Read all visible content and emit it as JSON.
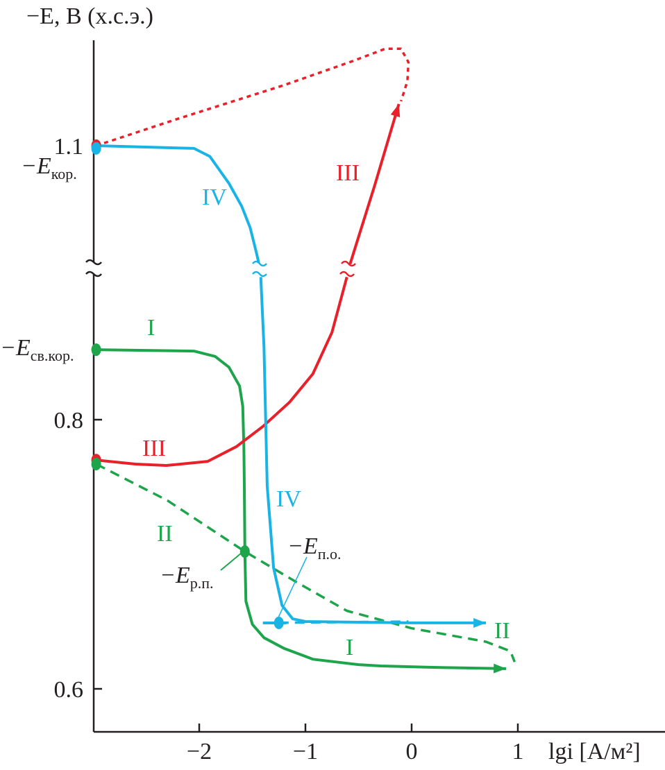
{
  "chart_data": {
    "type": "line",
    "title": "",
    "ylabel": "−E, B (х.с.э.)",
    "xlabel": "lgi [A/м²]",
    "xlim": [
      -2.99,
      1.2
    ],
    "ylim_lower": [
      0.53,
      0.908
    ],
    "ylim_upper": [
      1.012,
      1.177
    ],
    "y_axis_broken": true,
    "grid": false,
    "x_ticks": [
      -2,
      -1,
      0,
      1
    ],
    "x_tick_labels": [
      "−2",
      "−1",
      "0",
      "1"
    ],
    "y_ticks": [
      1.1,
      0.8,
      0.6
    ],
    "y_tick_labels": [
      "1.1",
      "0.8",
      "0.6"
    ],
    "colors": {
      "I": "#1ea54c",
      "II": "#1ea54c",
      "III": "#e8202a",
      "IV": "#19b3e6",
      "axis": "#231f20"
    },
    "series": [
      {
        "name": "I",
        "style": "solid",
        "color": "#1ea54c",
        "arrow": true,
        "points": [
          [
            -2.97,
            0.852
          ],
          [
            -2.05,
            0.851
          ],
          [
            -1.85,
            0.847
          ],
          [
            -1.72,
            0.839
          ],
          [
            -1.62,
            0.825
          ],
          [
            -1.59,
            0.81
          ],
          [
            -1.58,
            0.78
          ],
          [
            -1.575,
            0.75
          ],
          [
            -1.57,
            0.7
          ],
          [
            -1.56,
            0.665
          ],
          [
            -1.5,
            0.648
          ],
          [
            -1.39,
            0.638
          ],
          [
            -1.2,
            0.63
          ],
          [
            -0.93,
            0.622
          ],
          [
            -0.5,
            0.618
          ],
          [
            -0.29,
            0.617
          ],
          [
            0.2,
            0.616
          ],
          [
            0.89,
            0.615
          ]
        ]
      },
      {
        "name": "II",
        "style": "dashed",
        "color": "#1ea54c",
        "arrow": false,
        "points": [
          [
            -2.97,
            0.767
          ],
          [
            -2.3,
            0.74
          ],
          [
            -1.57,
            0.702
          ],
          [
            -1.1,
            0.68
          ],
          [
            -0.61,
            0.658
          ],
          [
            0.0,
            0.645
          ],
          [
            0.7,
            0.635
          ],
          [
            0.93,
            0.628
          ],
          [
            0.97,
            0.62
          ]
        ]
      },
      {
        "name": "III",
        "style": "solid",
        "color": "#e8202a",
        "arrow": true,
        "points": [
          [
            -2.97,
            0.77
          ],
          [
            -2.6,
            0.767
          ],
          [
            -2.31,
            0.766
          ],
          [
            -1.92,
            0.769
          ],
          [
            -1.65,
            0.78
          ],
          [
            -1.4,
            0.795
          ],
          [
            -1.15,
            0.813
          ],
          [
            -0.93,
            0.834
          ],
          [
            -0.75,
            0.865
          ],
          [
            -0.61,
            0.906
          ],
          [
            -0.58,
            1.012
          ],
          [
            -0.35,
            1.07
          ],
          [
            -0.12,
            1.131
          ]
        ]
      },
      {
        "name": "III (dashed return)",
        "style": "dotted",
        "color": "#e8202a",
        "arrow": false,
        "points": [
          [
            -2.97,
            1.1
          ],
          [
            -2.2,
            1.12
          ],
          [
            -1.2,
            1.145
          ],
          [
            -0.55,
            1.163
          ],
          [
            -0.25,
            1.172
          ],
          [
            -0.1,
            1.172
          ],
          [
            -0.03,
            1.162
          ],
          [
            -0.04,
            1.148
          ],
          [
            -0.1,
            1.133
          ]
        ]
      },
      {
        "name": "IV",
        "style": "solid",
        "color": "#19b3e6",
        "arrow": true,
        "points": [
          [
            -2.97,
            1.1
          ],
          [
            -2.05,
            1.098
          ],
          [
            -1.9,
            1.092
          ],
          [
            -1.72,
            1.072
          ],
          [
            -1.6,
            1.055
          ],
          [
            -1.52,
            1.039
          ],
          [
            -1.46,
            1.02
          ],
          [
            -1.44,
            1.013
          ],
          [
            -1.42,
            0.906
          ],
          [
            -1.39,
            0.854
          ],
          [
            -1.36,
            0.751
          ],
          [
            -1.3,
            0.69
          ],
          [
            -1.22,
            0.662
          ],
          [
            -1.12,
            0.652
          ],
          [
            -1.0,
            0.65
          ],
          [
            0.0,
            0.649
          ],
          [
            0.7,
            0.649
          ]
        ]
      },
      {
        "name": "IV (dashed)",
        "style": "dashed",
        "color": "#19b3e6",
        "arrow": false,
        "points": [
          [
            -1.4,
            0.649
          ],
          [
            -0.03,
            0.65
          ]
        ]
      }
    ],
    "markers": [
      {
        "label": "−E кор.",
        "x": -2.97,
        "y": 1.1,
        "color": "#e8202a"
      },
      {
        "label": "",
        "x": -2.97,
        "y": 1.098,
        "color": "#19b3e6"
      },
      {
        "label": "−E св.кор.",
        "x": -2.97,
        "y": 0.852,
        "color": "#1ea54c"
      },
      {
        "label": "",
        "x": -2.97,
        "y": 0.77,
        "color": "#e8202a"
      },
      {
        "label": "",
        "x": -2.97,
        "y": 0.767,
        "color": "#1ea54c"
      },
      {
        "label": "−E р.п.",
        "x": -1.57,
        "y": 0.702,
        "color": "#1ea54c"
      },
      {
        "label": "−E п.о.",
        "x": -1.25,
        "y": 0.649,
        "color": "#19b3e6"
      }
    ],
    "annotations": {
      "e_kor": {
        "main": "−E",
        "sub": "кор."
      },
      "e_sv_kor": {
        "main": "−E",
        "sub": "св.кор."
      },
      "e_rp": {
        "main": "−E",
        "sub": "р.п."
      },
      "e_po": {
        "main": "−E",
        "sub": "п.о."
      }
    },
    "curve_labels": {
      "I": "I",
      "II": "II",
      "III": "III",
      "IV": "IV"
    }
  }
}
